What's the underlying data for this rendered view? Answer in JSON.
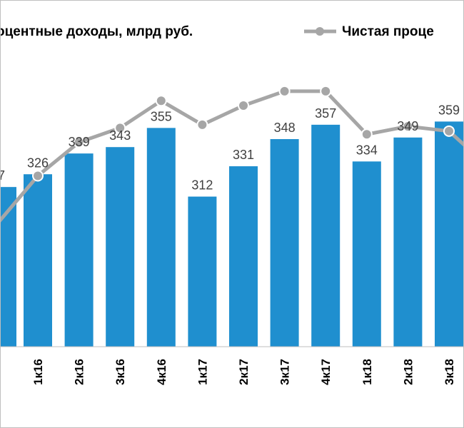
{
  "chart_data": {
    "type": "bar",
    "categories": [
      "1к16",
      "2к16",
      "3к16",
      "4к16",
      "1к17",
      "2к17",
      "3к17",
      "4к17",
      "1к18",
      "2к18",
      "3к18"
    ],
    "series": [
      {
        "name": "оцентные доходы, млрд руб.",
        "type": "bar",
        "color": "#1f8fcf",
        "values": [
          326,
          339,
          343,
          355,
          312,
          331,
          348,
          357,
          334,
          349,
          359
        ]
      },
      {
        "name": "Чистая проце",
        "type": "line",
        "color": "#a6a6a6",
        "values": [
          325,
          346,
          355,
          372,
          357,
          369,
          378,
          378,
          351,
          356,
          353
        ]
      }
    ],
    "partial_label": "7",
    "legend": "top",
    "grid": false,
    "ylim": [
      218,
      390
    ]
  }
}
